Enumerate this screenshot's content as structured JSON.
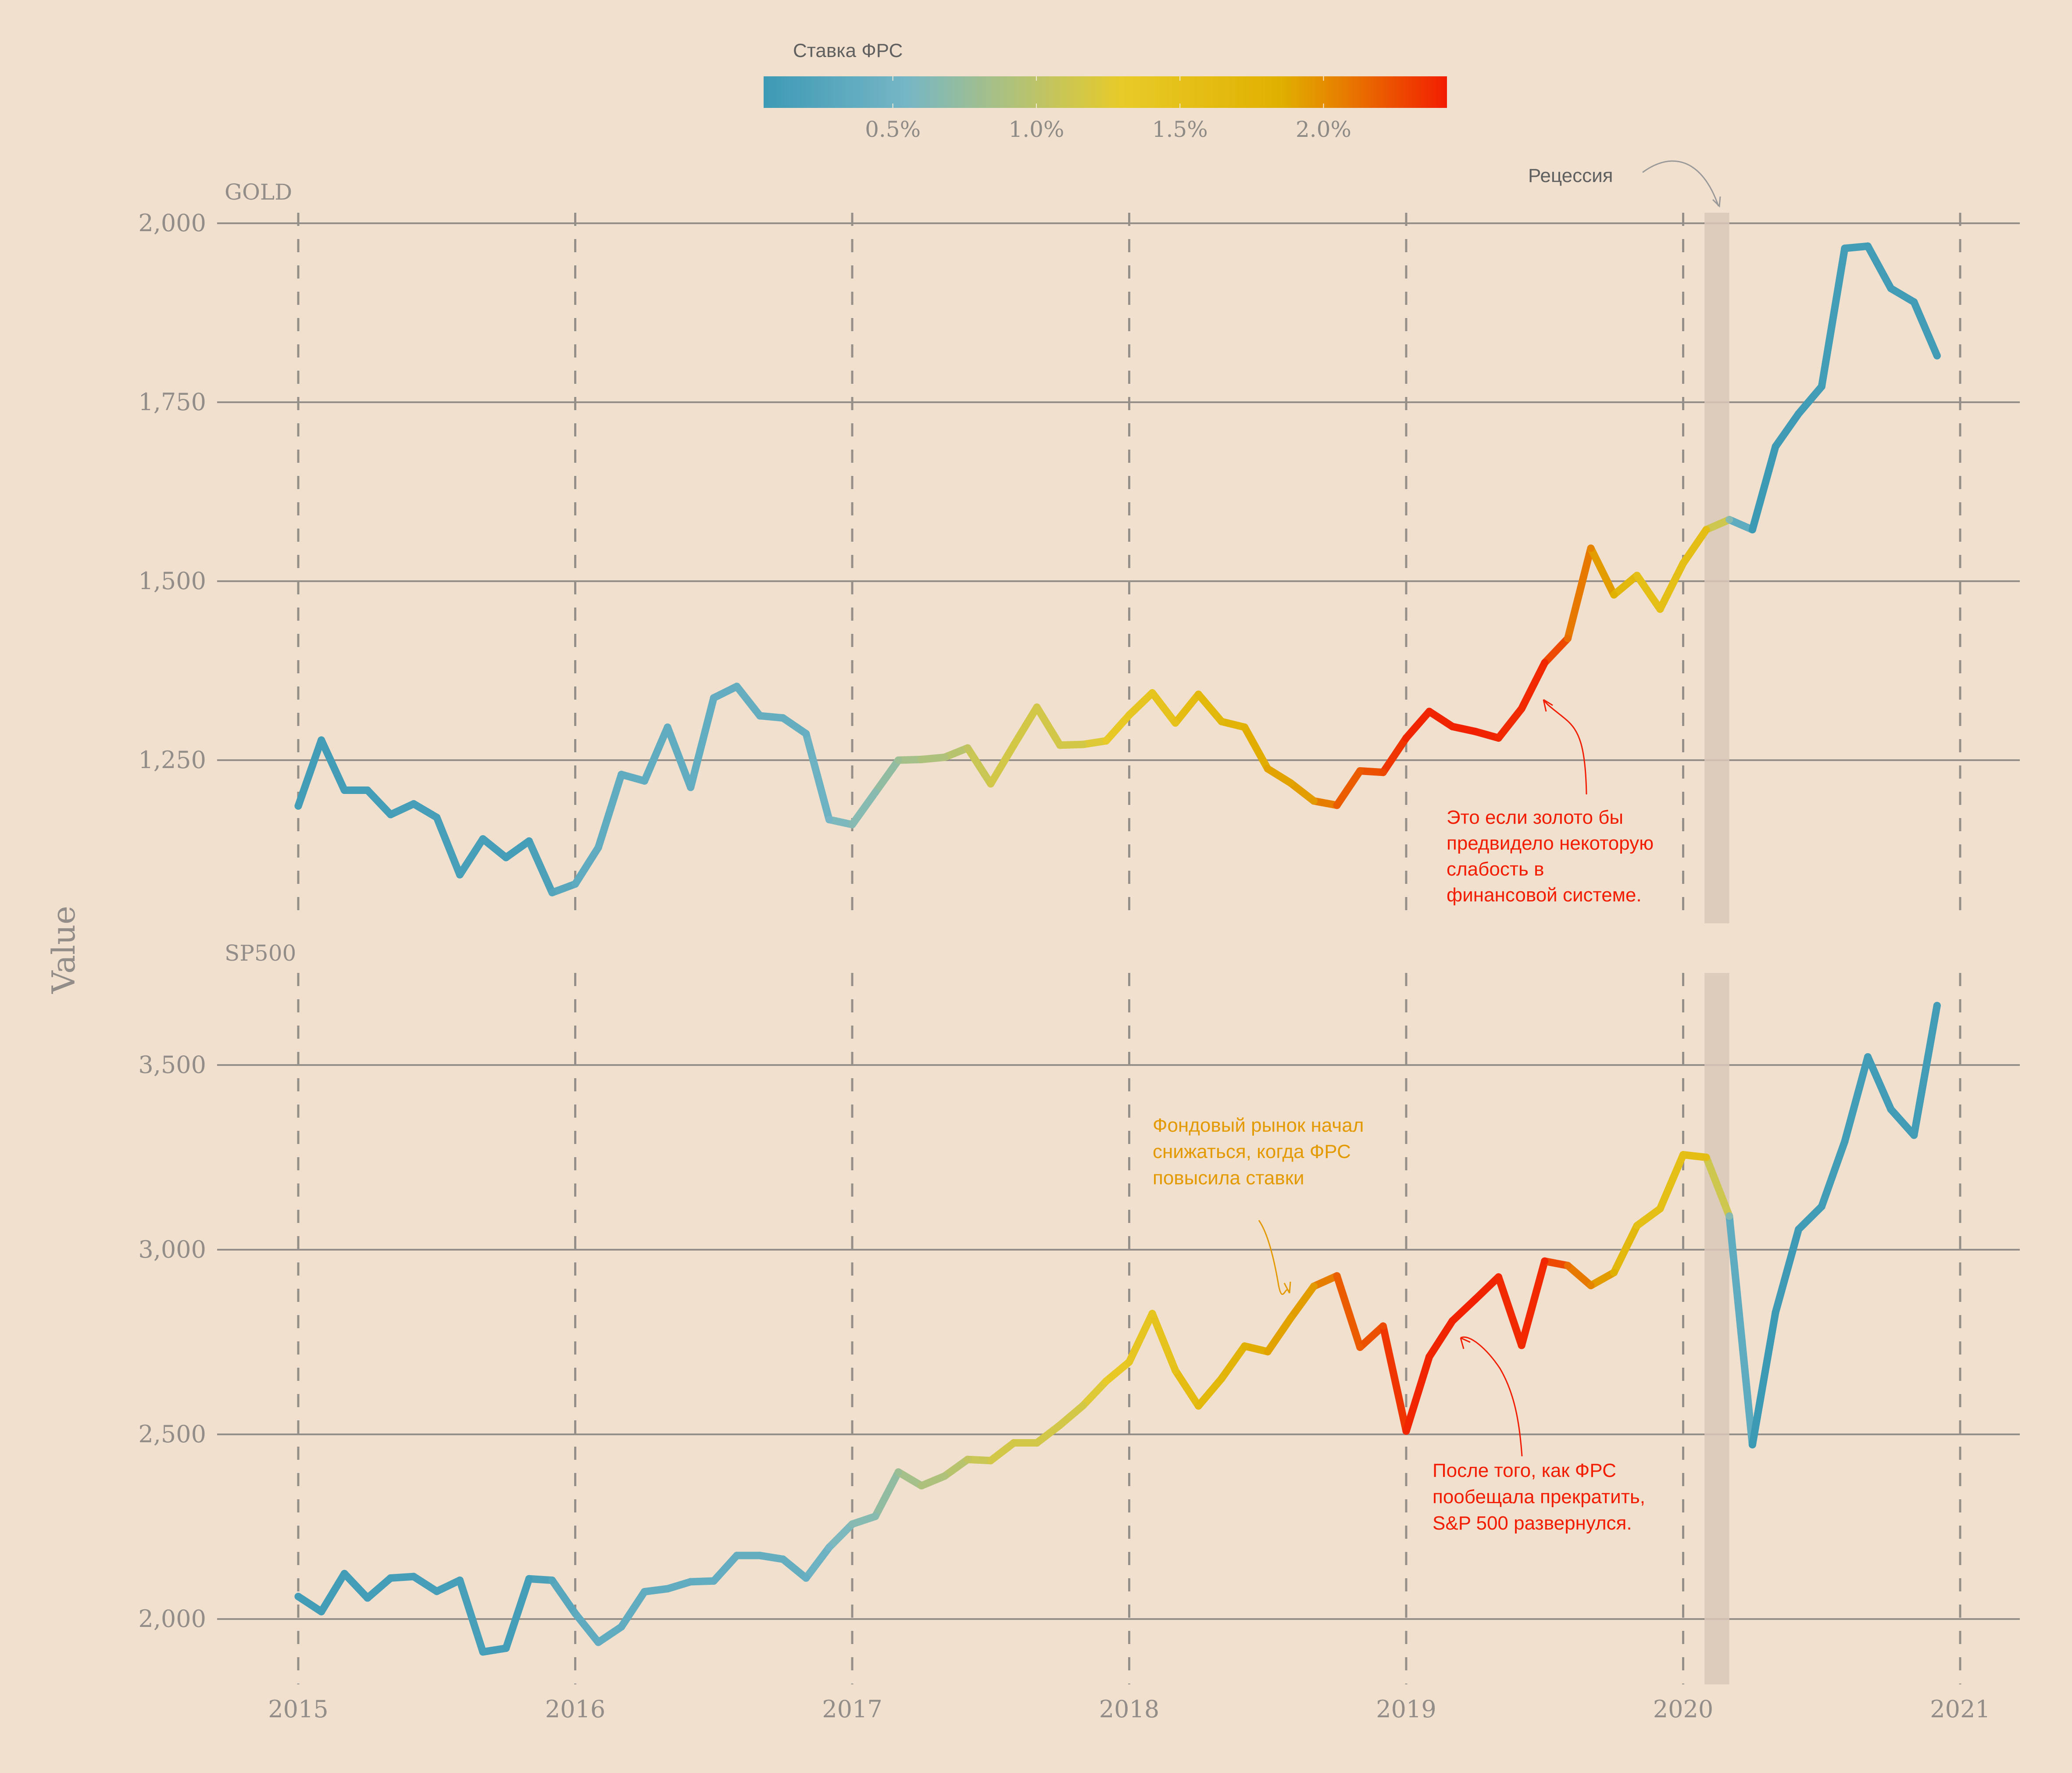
{
  "chart_data": {
    "type": "line",
    "ylabel": "Value",
    "xlabel": "",
    "x_ticks": [
      "2015",
      "2016",
      "2017",
      "2018",
      "2019",
      "2020",
      "2021"
    ],
    "x_range": [
      "2014-10",
      "2021-03"
    ],
    "months": [
      "2015-01",
      "2015-02",
      "2015-03",
      "2015-04",
      "2015-05",
      "2015-06",
      "2015-07",
      "2015-08",
      "2015-09",
      "2015-10",
      "2015-11",
      "2015-12",
      "2016-01",
      "2016-02",
      "2016-03",
      "2016-04",
      "2016-05",
      "2016-06",
      "2016-07",
      "2016-08",
      "2016-09",
      "2016-10",
      "2016-11",
      "2016-12",
      "2017-01",
      "2017-02",
      "2017-03",
      "2017-04",
      "2017-05",
      "2017-06",
      "2017-07",
      "2017-08",
      "2017-09",
      "2017-10",
      "2017-11",
      "2017-12",
      "2018-01",
      "2018-02",
      "2018-03",
      "2018-04",
      "2018-05",
      "2018-06",
      "2018-07",
      "2018-08",
      "2018-09",
      "2018-10",
      "2018-11",
      "2018-12",
      "2019-01",
      "2019-02",
      "2019-03",
      "2019-04",
      "2019-05",
      "2019-06",
      "2019-07",
      "2019-08",
      "2019-09",
      "2019-10",
      "2019-11",
      "2019-12",
      "2020-01",
      "2020-02",
      "2020-03",
      "2020-04",
      "2020-05",
      "2020-06",
      "2020-07",
      "2020-08",
      "2020-09",
      "2020-10",
      "2020-11",
      "2020-12"
    ],
    "fed_rate": [
      0.11,
      0.11,
      0.11,
      0.12,
      0.12,
      0.13,
      0.13,
      0.14,
      0.14,
      0.12,
      0.12,
      0.24,
      0.34,
      0.38,
      0.36,
      0.37,
      0.37,
      0.38,
      0.39,
      0.4,
      0.4,
      0.4,
      0.41,
      0.54,
      0.65,
      0.66,
      0.79,
      0.9,
      0.91,
      1.04,
      1.15,
      1.16,
      1.15,
      1.15,
      1.16,
      1.3,
      1.41,
      1.42,
      1.51,
      1.69,
      1.7,
      1.82,
      1.91,
      1.91,
      1.95,
      2.19,
      2.2,
      2.27,
      2.4,
      2.4,
      2.41,
      2.42,
      2.39,
      2.38,
      2.4,
      2.13,
      2.04,
      1.83,
      1.55,
      1.55,
      1.55,
      1.58,
      0.65,
      0.05,
      0.05,
      0.08,
      0.09,
      0.1,
      0.09,
      0.09,
      0.09,
      0.09
    ],
    "panels": [
      {
        "name": "GOLD",
        "y_ticks": [
          1250,
          1500,
          1750,
          2000
        ],
        "y_tick_labels": [
          "1,250",
          "1,500",
          "1,750",
          "2,000"
        ],
        "ylim": [
          1040,
          2010
        ],
        "values": [
          1186,
          1278,
          1208,
          1208,
          1174,
          1189,
          1170,
          1090,
          1140,
          1114,
          1137,
          1065,
          1077,
          1128,
          1230,
          1221,
          1296,
          1212,
          1337,
          1353,
          1312,
          1309,
          1287,
          1167,
          1160,
          1205,
          1250,
          1251,
          1254,
          1267,
          1217,
          1271,
          1324,
          1271,
          1272,
          1277,
          1313,
          1344,
          1302,
          1342,
          1304,
          1296,
          1238,
          1218,
          1193,
          1187,
          1235,
          1233,
          1281,
          1318,
          1297,
          1290,
          1281,
          1322,
          1386,
          1420,
          1546,
          1481,
          1508,
          1461,
          1525,
          1572,
          1586,
          1572,
          1688,
          1734,
          1772,
          1965,
          1968,
          1909,
          1890,
          1815
        ]
      },
      {
        "name": "SP500",
        "y_ticks": [
          2000,
          2500,
          3000,
          3500
        ],
        "y_tick_labels": [
          "2,000",
          "2,500",
          "3,000",
          "3,500"
        ],
        "ylim": [
          1850,
          3780
        ],
        "values": [
          2061,
          2020,
          2123,
          2057,
          2111,
          2115,
          2075,
          2105,
          1911,
          1921,
          2109,
          2105,
          2015,
          1937,
          1979,
          2074,
          2082,
          2101,
          2103,
          2172,
          2172,
          2162,
          2111,
          2194,
          2257,
          2278,
          2398,
          2361,
          2387,
          2432,
          2429,
          2477,
          2477,
          2525,
          2578,
          2644,
          2696,
          2827,
          2673,
          2577,
          2651,
          2739,
          2724,
          2815,
          2901,
          2929,
          2736,
          2793,
          2509,
          2710,
          2807,
          2866,
          2926,
          2741,
          2969,
          2957,
          2903,
          2938,
          3065,
          3111,
          3257,
          3250,
          3091,
          2472,
          2830,
          3055,
          3117,
          3293,
          3522,
          3380,
          3310,
          3661
        ]
      }
    ],
    "recession": {
      "label": "Рецессия",
      "start": "2020-02",
      "end": "2020-03"
    },
    "colorbar": {
      "title": "Ставка ФРС",
      "range": [
        0.05,
        2.43
      ],
      "ticks": [
        0.5,
        1.0,
        1.5,
        2.0
      ],
      "tick_labels": [
        "0.5%",
        "1.0%",
        "1.5%",
        "2.0%"
      ],
      "stops": [
        {
          "v": 0.05,
          "color": "#3d9ab5"
        },
        {
          "v": 0.55,
          "color": "#76b6c5"
        },
        {
          "v": 0.85,
          "color": "#a6c088"
        },
        {
          "v": 1.3,
          "color": "#e8cb28"
        },
        {
          "v": 1.85,
          "color": "#e0b000"
        },
        {
          "v": 2.05,
          "color": "#e68200"
        },
        {
          "v": 2.43,
          "color": "#f21d00"
        }
      ]
    },
    "annotations": [
      {
        "panel": "GOLD",
        "lines": [
          "Это если золото бы",
          "предвидело некоторую",
          "слабость в",
          "финансовой системе."
        ],
        "color": "#f21d00"
      },
      {
        "panel": "SP500",
        "lines": [
          "Фондовый рынок начал",
          "снижаться, когда ФРС",
          "повысила ставки"
        ],
        "color": "#e39a00"
      },
      {
        "panel": "SP500",
        "lines": [
          "После того, как ФРС",
          "пообещала прекратить,",
          "S&P 500 развернулся."
        ],
        "color": "#f21d00"
      }
    ]
  }
}
